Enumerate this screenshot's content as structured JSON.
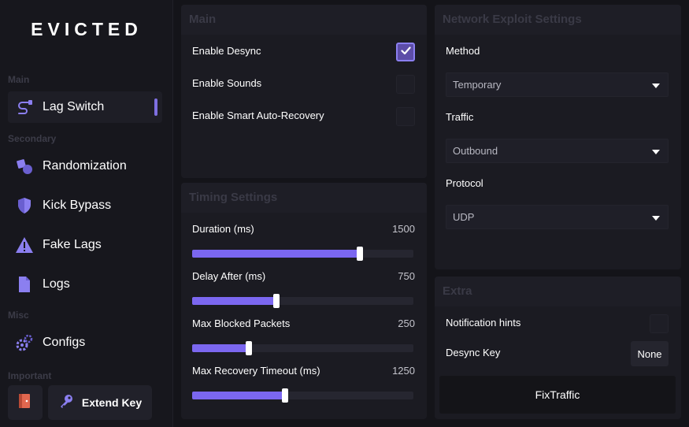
{
  "app": {
    "logo": "EVICTED"
  },
  "sidebar": {
    "sections": {
      "main": "Main",
      "secondary": "Secondary",
      "misc": "Misc",
      "important": "Important"
    },
    "items": [
      {
        "label": "Lag Switch",
        "icon": "cable-icon",
        "active": true
      },
      {
        "label": "Randomization",
        "icon": "shapes-icon"
      },
      {
        "label": "Kick Bypass",
        "icon": "shield-icon"
      },
      {
        "label": "Fake Lags",
        "icon": "warning-icon"
      },
      {
        "label": "Logs",
        "icon": "file-icon"
      },
      {
        "label": "Configs",
        "icon": "gears-icon"
      }
    ],
    "exit_icon": "exit-door-icon",
    "extend_key": {
      "label": "Extend Key",
      "icon": "key-icon"
    }
  },
  "main_panel": {
    "title": "Main",
    "options": [
      {
        "label": "Enable Desync",
        "checked": true
      },
      {
        "label": "Enable Sounds",
        "checked": false
      },
      {
        "label": "Enable Smart Auto-Recovery",
        "checked": false
      }
    ]
  },
  "timing_panel": {
    "title": "Timing Settings",
    "sliders": [
      {
        "label": "Duration (ms)",
        "value": "1500",
        "fill": 0.757
      },
      {
        "label": "Delay After (ms)",
        "value": "750",
        "fill": 0.38
      },
      {
        "label": "Max Blocked Packets",
        "value": "250",
        "fill": 0.257
      },
      {
        "label": "Max Recovery Timeout (ms)",
        "value": "1250",
        "fill": 0.42
      }
    ]
  },
  "network_panel": {
    "title": "Network Exploit Settings",
    "fields": [
      {
        "label": "Method",
        "value": "Temporary"
      },
      {
        "label": "Traffic",
        "value": "Outbound"
      },
      {
        "label": "Protocol",
        "value": "UDP"
      }
    ]
  },
  "extra_panel": {
    "title": "Extra",
    "notification_hints": {
      "label": "Notification hints",
      "checked": false
    },
    "desync_key": {
      "label": "Desync Key",
      "value": "None"
    },
    "fix_button": "FixTraffic"
  },
  "colors": {
    "accent": "#7b67f0",
    "background": "#141419",
    "panel": "#1b1b22",
    "sidebar": "#17171d"
  }
}
